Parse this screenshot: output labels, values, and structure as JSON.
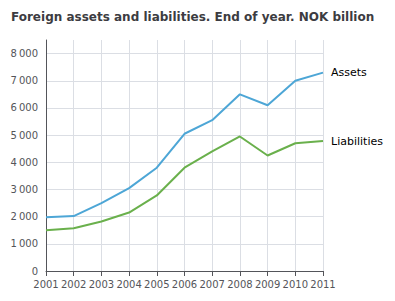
{
  "chart_data": {
    "type": "line",
    "title": "Foreign assets and liabilities. End of year. NOK billion",
    "x": [
      2001,
      2002,
      2003,
      2004,
      2005,
      2006,
      2007,
      2008,
      2009,
      2010,
      2011
    ],
    "series": [
      {
        "name": "Assets",
        "color": "#4da6d6",
        "values": [
          1980,
          2020,
          2500,
          3050,
          3800,
          5050,
          5550,
          6500,
          6100,
          7000,
          7300
        ]
      },
      {
        "name": "Liabilities",
        "color": "#6ab04c",
        "values": [
          1500,
          1570,
          1820,
          2150,
          2780,
          3800,
          4400,
          4950,
          4250,
          4700,
          4780
        ]
      }
    ],
    "xlim": [
      2001,
      2011
    ],
    "xticks": [
      2001,
      2002,
      2003,
      2004,
      2005,
      2006,
      2007,
      2008,
      2009,
      2010,
      2011
    ],
    "ylim": [
      0,
      8500
    ],
    "yticks": [
      0,
      {
        "value": 1000,
        "label": "1 000"
      },
      {
        "value": 2000,
        "label": "2 000"
      },
      {
        "value": 3000,
        "label": "3 000"
      },
      {
        "value": 4000,
        "label": "4 000"
      },
      {
        "value": 5000,
        "label": "5 000"
      },
      {
        "value": 6000,
        "label": "6 000"
      },
      {
        "value": 7000,
        "label": "7 000"
      },
      {
        "value": 8000,
        "label": "8 000"
      }
    ],
    "grid": true
  }
}
